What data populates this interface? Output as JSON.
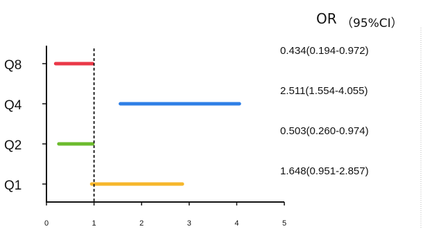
{
  "chart_data": {
    "type": "forest",
    "header": {
      "label": "OR",
      "ci": "（95%CI）"
    },
    "x_ticks": [
      "0",
      "1",
      "2",
      "3",
      "4",
      "5"
    ],
    "xlim": [
      0,
      5
    ],
    "reference_line": 1,
    "rows": [
      {
        "name": "Q8",
        "or": 0.434,
        "lo": 0.194,
        "hi": 0.972,
        "text": "0.434(0.194-0.972)",
        "color": "#ea3848"
      },
      {
        "name": "Q4",
        "or": 2.511,
        "lo": 1.554,
        "hi": 4.055,
        "text": "2.511(1.554-4.055)",
        "color": "#2f7fe6"
      },
      {
        "name": "Q2",
        "or": 0.503,
        "lo": 0.26,
        "hi": 0.974,
        "text": "0.503(0.260-0.974)",
        "color": "#6cbb2e"
      },
      {
        "name": "Q1",
        "or": 1.648,
        "lo": 0.951,
        "hi": 2.857,
        "text": "1.648(0.951-2.857)",
        "color": "#f6b72c"
      }
    ]
  }
}
